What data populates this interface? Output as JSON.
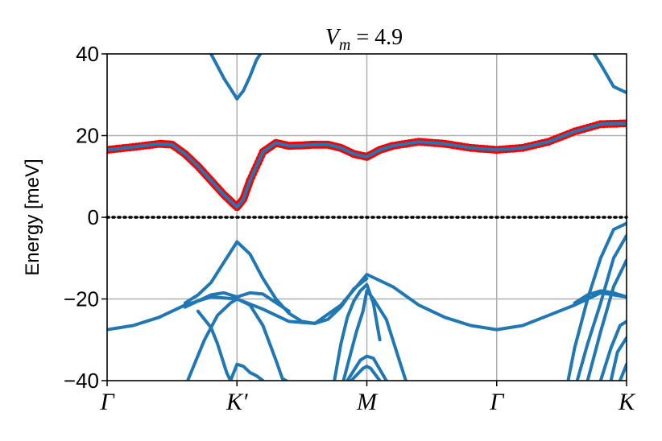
{
  "chart_data": {
    "type": "line",
    "title": "V_m = 4.9",
    "title_parts": {
      "main": "V",
      "sub": "m",
      "rest": " = 4.9"
    },
    "ylabel": "Energy [meV]",
    "xlabel": "",
    "ylim": [
      -40,
      40
    ],
    "yticks": [
      -40,
      -20,
      0,
      20,
      40
    ],
    "ytick_labels": [
      "−40",
      "−20",
      "0",
      "20",
      "40"
    ],
    "xlim": [
      0,
      4
    ],
    "xticks": [
      0,
      1,
      2,
      3,
      4
    ],
    "xtick_labels": [
      "Γ",
      "K′",
      "M",
      "Γ",
      "K"
    ],
    "grid": true,
    "fermi_level": 0,
    "colors": {
      "bands": "#1f77b4",
      "highlight": "#ff0000",
      "fermi": "#000000",
      "grid": "#b0b0b0"
    },
    "highlighted_band": {
      "x": [
        0,
        0.2,
        0.4,
        0.5,
        0.6,
        0.7,
        0.8,
        0.9,
        0.95,
        1.0,
        1.05,
        1.1,
        1.2,
        1.3,
        1.4,
        1.5,
        1.6,
        1.7,
        1.8,
        1.9,
        2.0,
        2.1,
        2.2,
        2.4,
        2.6,
        2.8,
        3.0,
        3.2,
        3.4,
        3.6,
        3.8,
        4.0
      ],
      "y": [
        16.5,
        17.2,
        18.0,
        17.8,
        15.5,
        12.5,
        9.0,
        5.5,
        4.0,
        2.5,
        4.5,
        9.0,
        16.0,
        18.2,
        17.5,
        17.6,
        17.8,
        17.8,
        17.0,
        15.5,
        14.8,
        16.5,
        17.5,
        18.5,
        18.0,
        17.0,
        16.5,
        17.0,
        18.5,
        21.0,
        22.8,
        23.0
      ]
    },
    "series": [
      {
        "x": [
          0,
          0.2,
          0.4,
          0.6,
          0.8,
          1.0,
          1.2,
          1.4,
          1.6,
          1.8,
          2.0,
          2.2,
          2.4,
          2.6,
          2.8,
          3.0,
          3.2,
          3.4,
          3.6,
          3.8,
          4.0
        ],
        "y": [
          -27.5,
          -26.5,
          -24.5,
          -21.5,
          -19.5,
          -20.0,
          -22.5,
          -25.5,
          -26.0,
          -21.5,
          -14.0,
          -17.0,
          -21.5,
          -24.5,
          -26.5,
          -27.5,
          -26.5,
          -24.0,
          -21.5,
          -18.5,
          -19.5
        ]
      },
      {
        "x": [
          0.6,
          0.7,
          0.8,
          0.9,
          1.0,
          1.1,
          1.2,
          1.3,
          1.4,
          1.5,
          1.6,
          1.7,
          1.8,
          1.9,
          2.0
        ],
        "y": [
          -21.0,
          -19.0,
          -16.0,
          -11.0,
          -6.0,
          -9.0,
          -15.0,
          -20.0,
          -23.5,
          -25.5,
          -26.0,
          -25.0,
          -22.0,
          -17.5,
          -15.0
        ]
      },
      {
        "x": [
          0.6,
          0.8,
          0.9,
          1.0,
          1.1,
          1.2,
          1.4
        ],
        "y": [
          -22.0,
          -19.0,
          -18.5,
          -19.5,
          -18.5,
          -18.8,
          -23.0
        ]
      },
      {
        "x": [
          0.62,
          0.75,
          0.85,
          0.95,
          1.0,
          1.1,
          1.2,
          1.3,
          1.35,
          1.38
        ],
        "y": [
          -40.0,
          -30.0,
          -24.0,
          -21.0,
          -20.0,
          -21.5,
          -26.5,
          -35.0,
          -39.5,
          -40.0
        ]
      },
      {
        "x": [
          0.7,
          0.8,
          0.85,
          0.92,
          0.95
        ],
        "y": [
          -23.0,
          -27.0,
          -31.0,
          -38.0,
          -40.0
        ]
      },
      {
        "x": [
          0.95,
          1.0,
          1.05,
          1.1,
          1.15,
          1.2
        ],
        "y": [
          -40.0,
          -36.0,
          -36.5,
          -38.0,
          -38.8,
          -40.0
        ]
      },
      {
        "x": [
          1.75,
          1.8,
          1.85,
          1.9,
          1.95,
          2.0,
          2.05,
          2.1
        ],
        "y": [
          -40.0,
          -31.0,
          -24.5,
          -20.5,
          -18.0,
          -16.5,
          -21.0,
          -30.0
        ]
      },
      {
        "x": [
          1.82,
          1.87,
          1.92,
          1.97,
          2.0,
          2.05,
          2.15,
          2.25,
          2.3
        ],
        "y": [
          -40.0,
          -34.0,
          -28.0,
          -23.0,
          -18.0,
          -20.0,
          -25.0,
          -35.0,
          -40.0
        ]
      },
      {
        "x": [
          1.85,
          1.95,
          2.0,
          2.05,
          2.15
        ],
        "y": [
          -40.0,
          -35.0,
          -34.0,
          -34.5,
          -40.0
        ]
      },
      {
        "x": [
          1.88,
          1.97,
          2.0,
          2.03,
          2.1
        ],
        "y": [
          -40.0,
          -37.0,
          -36.5,
          -37.0,
          -40.0
        ]
      },
      {
        "x": [
          3.55,
          3.6,
          3.7,
          3.8,
          3.9,
          4.0
        ],
        "y": [
          -40.0,
          -32.0,
          -20.0,
          -10.0,
          -3.0,
          -1.5
        ]
      },
      {
        "x": [
          3.62,
          3.7,
          3.8,
          3.9,
          4.0
        ],
        "y": [
          -40.0,
          -31.0,
          -21.0,
          -10.0,
          -4.5
        ]
      },
      {
        "x": [
          3.7,
          3.8,
          3.9,
          4.0
        ],
        "y": [
          -40.0,
          -28.0,
          -17.0,
          -10.5
        ]
      },
      {
        "x": [
          3.6,
          3.7,
          3.8,
          3.9,
          4.0
        ],
        "y": [
          -21.0,
          -19.0,
          -18.0,
          -18.5,
          -19.5
        ]
      },
      {
        "x": [
          3.8,
          3.88,
          3.95,
          4.0
        ],
        "y": [
          -40.0,
          -32.0,
          -26.5,
          -25.5
        ]
      },
      {
        "x": [
          3.88,
          3.93,
          4.0
        ],
        "y": [
          -40.0,
          -33.0,
          -29.5
        ]
      },
      {
        "x": [
          3.95,
          4.0
        ],
        "y": [
          -40.0,
          -36.0
        ]
      },
      {
        "x": [
          0.8,
          0.85,
          0.9,
          0.95,
          1.0
        ],
        "y": [
          40.0,
          37.0,
          34.0,
          31.5,
          29.0
        ]
      },
      {
        "x": [
          1.0,
          1.05,
          1.1,
          1.15,
          1.18
        ],
        "y": [
          29.0,
          31.0,
          34.5,
          38.5,
          40.0
        ]
      },
      {
        "x": [
          3.75,
          3.8,
          3.9,
          4.0
        ],
        "y": [
          40.0,
          37.5,
          32.0,
          30.5
        ]
      }
    ]
  }
}
